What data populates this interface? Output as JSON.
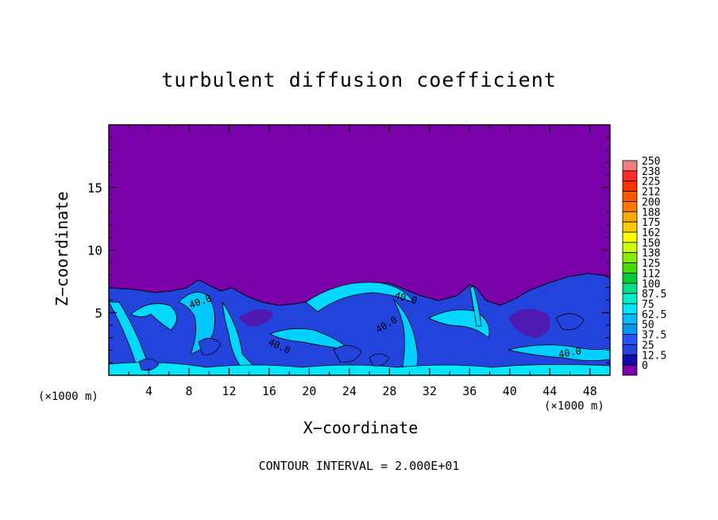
{
  "chart_data": {
    "type": "heatmap",
    "title": "turbulent diffusion coefficient",
    "xlabel": "X−coordinate",
    "ylabel": "Z−coordinate",
    "x_unit_left": "(×1000 m)",
    "x_unit_right": "(×1000 m)",
    "footer": "CONTOUR INTERVAL = 2.000E+01",
    "xlim": [
      0,
      50
    ],
    "ylim": [
      0,
      20
    ],
    "x_ticks": [
      "4",
      "8",
      "12",
      "16",
      "20",
      "24",
      "28",
      "32",
      "36",
      "40",
      "44",
      "48"
    ],
    "y_ticks": [
      "5",
      "10",
      "15"
    ],
    "colorbar": {
      "labels": [
        "250",
        "238",
        "225",
        "212",
        "200",
        "188",
        "175",
        "162",
        "150",
        "138",
        "125",
        "112",
        "100",
        "87.5",
        "75",
        "62.5",
        "50",
        "37.5",
        "25",
        "12.5",
        "0"
      ],
      "colors": [
        "#f08080",
        "#ff2a2a",
        "#ff3300",
        "#ff5500",
        "#ff7700",
        "#ffaa00",
        "#ffcc00",
        "#ffff00",
        "#ccff00",
        "#88ee00",
        "#44dd00",
        "#00cc33",
        "#00e08a",
        "#00eecc",
        "#00e6ff",
        "#00bbff",
        "#0099ee",
        "#2255ff",
        "#2244dd",
        "#0f0aa8",
        "#7a00aa"
      ]
    },
    "contour_labels": [
      "40.0",
      "40.0",
      "40.0",
      "40.0",
      "40.0"
    ],
    "colors": {
      "background_field": "#7a00aa",
      "mid_field": "#2244dd",
      "high_field": "#00d8ff"
    }
  }
}
